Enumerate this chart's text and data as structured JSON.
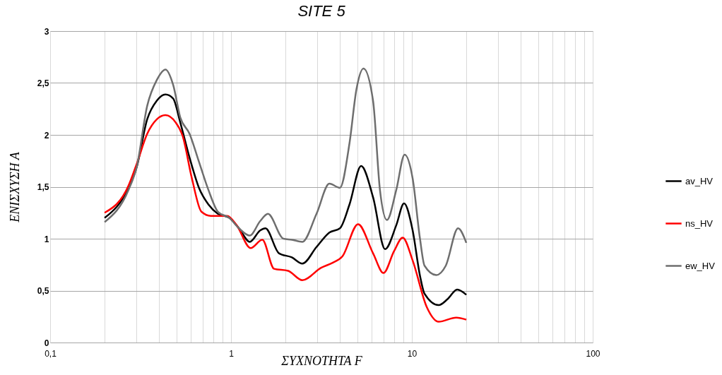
{
  "chart_data": {
    "type": "line",
    "title": "SITE 5",
    "xlabel": "ΣΥΧΝΟΤΗΤΑ F",
    "ylabel": "ΕΝΙΣΧΥΣΗ Α",
    "log": "x",
    "grid": true,
    "legend": "right",
    "marker": "none",
    "line_style": "solid",
    "xlim": [
      0.1,
      100
    ],
    "ylim": [
      0,
      3
    ],
    "xticks": [
      {
        "value": 0.1,
        "label": "0,1"
      },
      {
        "value": 0.2,
        "label": null
      },
      {
        "value": 0.3,
        "label": null
      },
      {
        "value": 0.4,
        "label": null
      },
      {
        "value": 0.5,
        "label": null
      },
      {
        "value": 0.6,
        "label": null
      },
      {
        "value": 0.7,
        "label": null
      },
      {
        "value": 0.8,
        "label": null
      },
      {
        "value": 0.9,
        "label": null
      },
      1,
      {
        "value": 2,
        "label": null
      },
      {
        "value": 3,
        "label": null
      },
      {
        "value": 4,
        "label": null
      },
      {
        "value": 5,
        "label": null
      },
      {
        "value": 6,
        "label": null
      },
      {
        "value": 7,
        "label": null
      },
      {
        "value": 8,
        "label": null
      },
      {
        "value": 9,
        "label": null
      },
      10,
      {
        "value": 20,
        "label": null
      },
      {
        "value": 30,
        "label": null
      },
      {
        "value": 40,
        "label": null
      },
      {
        "value": 50,
        "label": null
      },
      {
        "value": 60,
        "label": null
      },
      {
        "value": 70,
        "label": null
      },
      {
        "value": 80,
        "label": null
      },
      {
        "value": 90,
        "label": null
      },
      100
    ],
    "yticks": [
      0,
      {
        "value": 0.5,
        "label": "0,5"
      },
      1,
      {
        "value": 1.5,
        "label": "1,5"
      },
      2,
      {
        "value": 2.5,
        "label": "2,5"
      },
      3
    ],
    "series": [
      {
        "name": "av_HV",
        "color": "#000000",
        "x": [
          0.2,
          0.271,
          0.301,
          0.344,
          0.389,
          0.434,
          0.479,
          0.524,
          0.59,
          0.665,
          0.75,
          0.846,
          0.98,
          1.107,
          1.27,
          1.45,
          1.55,
          1.84,
          2.17,
          2.48,
          2.97,
          3.5,
          4.0,
          4.52,
          5.24,
          6.1,
          7.11,
          8.2,
          9.05,
          10.1,
          11.07,
          11.75,
          14.06,
          15.8,
          17.8,
          20
        ],
        "values": [
          1.2,
          1.49,
          1.69,
          2.15,
          2.33,
          2.39,
          2.35,
          2.12,
          1.78,
          1.49,
          1.33,
          1.24,
          1.2,
          1.1,
          0.97,
          1.08,
          1.1,
          0.86,
          0.82,
          0.76,
          0.92,
          1.06,
          1.1,
          1.33,
          1.7,
          1.4,
          0.9,
          1.13,
          1.34,
          1.08,
          0.65,
          0.47,
          0.36,
          0.42,
          0.51,
          0.46
        ]
      },
      {
        "name": "ns_HV",
        "color": "#ff0000",
        "x": [
          0.2,
          0.271,
          0.301,
          0.344,
          0.389,
          0.434,
          0.494,
          0.54,
          0.608,
          0.686,
          0.773,
          0.953,
          1.074,
          1.285,
          1.49,
          1.73,
          2.07,
          2.48,
          3.15,
          3.66,
          4.13,
          5.04,
          6.1,
          6.97,
          7.97,
          8.9,
          10.1,
          12.1,
          14.06,
          17.6,
          20
        ],
        "values": [
          1.25,
          1.51,
          1.72,
          2.01,
          2.15,
          2.19,
          2.12,
          1.99,
          1.58,
          1.26,
          1.22,
          1.22,
          1.13,
          0.91,
          0.99,
          0.71,
          0.69,
          0.6,
          0.72,
          0.77,
          0.83,
          1.14,
          0.86,
          0.67,
          0.88,
          1.01,
          0.79,
          0.34,
          0.2,
          0.24,
          0.22
        ]
      },
      {
        "name": "ew_HV",
        "color": "#6e6e6e",
        "x": [
          0.2,
          0.271,
          0.301,
          0.344,
          0.389,
          0.434,
          0.479,
          0.524,
          0.59,
          0.665,
          0.75,
          0.846,
          0.98,
          1.107,
          1.27,
          1.45,
          1.6,
          1.95,
          2.17,
          2.48,
          2.97,
          3.5,
          4.0,
          4.52,
          4.94,
          5.4,
          6.1,
          6.66,
          7.28,
          8.2,
          9.12,
          10.1,
          11.07,
          11.75,
          13.65,
          15.4,
          18.0,
          20
        ],
        "values": [
          1.16,
          1.47,
          1.69,
          2.28,
          2.53,
          2.63,
          2.48,
          2.17,
          2.01,
          1.74,
          1.47,
          1.26,
          1.2,
          1.1,
          1.03,
          1.17,
          1.24,
          1.0,
          0.99,
          0.97,
          1.24,
          1.53,
          1.49,
          1.92,
          2.44,
          2.64,
          2.33,
          1.47,
          1.18,
          1.47,
          1.81,
          1.58,
          1.01,
          0.74,
          0.65,
          0.74,
          1.1,
          0.96
        ]
      }
    ]
  }
}
